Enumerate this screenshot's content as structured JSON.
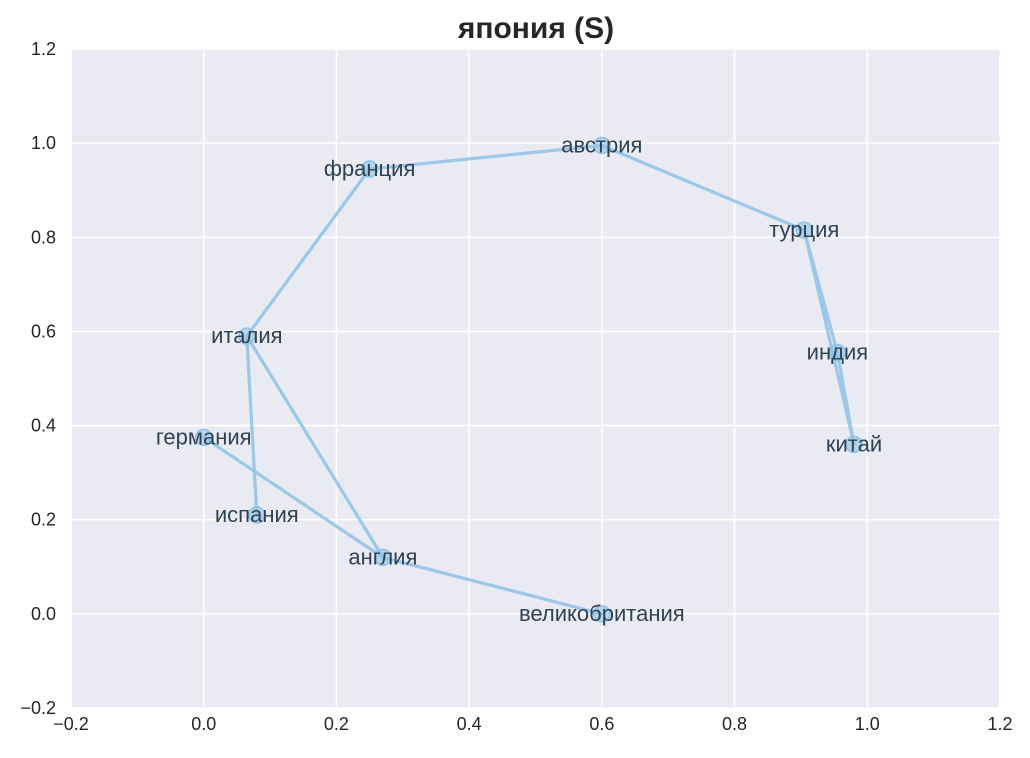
{
  "chart_data": {
    "type": "line",
    "title": "япония (S)",
    "xlabel": "",
    "ylabel": "",
    "xlim": [
      -0.2,
      1.2
    ],
    "ylim": [
      -0.2,
      1.2
    ],
    "xticks": [
      "−0.2",
      "0.0",
      "0.2",
      "0.4",
      "0.6",
      "0.8",
      "1.0",
      "1.2"
    ],
    "yticks": [
      "−0.2",
      "0.0",
      "0.2",
      "0.4",
      "0.6",
      "0.8",
      "1.0",
      "1.2"
    ],
    "grid": true,
    "line_color": "#8dc2e7",
    "background": "#eaeaf2",
    "points": [
      {
        "label": "великобритания",
        "x": 0.6,
        "y": 0.0
      },
      {
        "label": "англия",
        "x": 0.27,
        "y": 0.12
      },
      {
        "label": "германия",
        "x": 0.0,
        "y": 0.375
      },
      {
        "label": "испания",
        "x": 0.08,
        "y": 0.21
      },
      {
        "label": "италия",
        "x": 0.065,
        "y": 0.59
      },
      {
        "label": "франция",
        "x": 0.25,
        "y": 0.945
      },
      {
        "label": "австрия",
        "x": 0.6,
        "y": 0.995
      },
      {
        "label": "турция",
        "x": 0.905,
        "y": 0.815
      },
      {
        "label": "китай",
        "x": 0.98,
        "y": 0.36
      },
      {
        "label": "индия",
        "x": 0.955,
        "y": 0.555
      }
    ],
    "path_order": [
      "великобритания",
      "англия",
      "германия",
      "англия",
      "италия",
      "испания",
      "италия",
      "франция",
      "австрия",
      "турция",
      "китай",
      "индия",
      "турция"
    ]
  }
}
